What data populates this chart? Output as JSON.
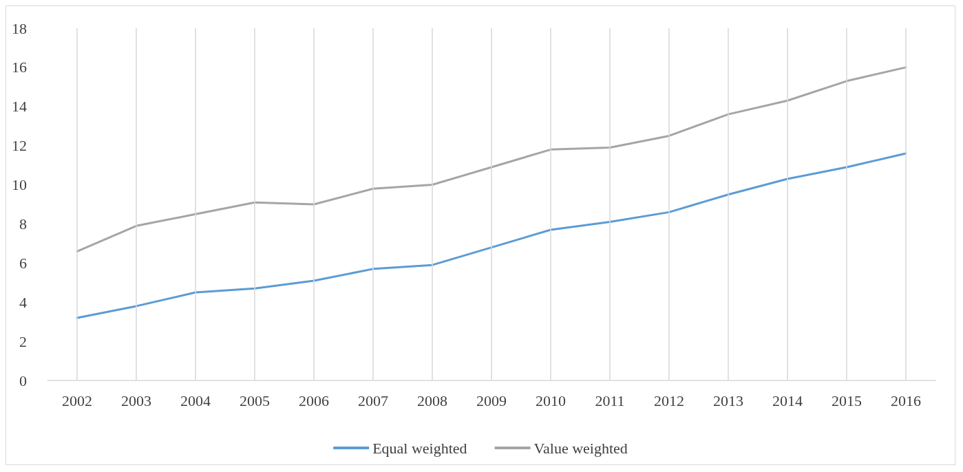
{
  "chart_data": {
    "type": "line",
    "categories": [
      "2002",
      "2003",
      "2004",
      "2005",
      "2006",
      "2007",
      "2008",
      "2009",
      "2010",
      "2011",
      "2012",
      "2013",
      "2014",
      "2015",
      "2016"
    ],
    "series": [
      {
        "name": "Equal weighted",
        "color": "#5b9bd5",
        "values": [
          3.2,
          3.8,
          4.5,
          4.7,
          5.1,
          5.7,
          5.9,
          6.8,
          7.7,
          8.1,
          8.6,
          9.5,
          10.3,
          10.9,
          11.6
        ]
      },
      {
        "name": "Value weighted",
        "color": "#a5a5a5",
        "values": [
          6.6,
          7.9,
          8.5,
          9.1,
          9.0,
          9.8,
          10.0,
          10.9,
          11.8,
          11.9,
          12.5,
          13.6,
          14.3,
          15.3,
          16.0
        ]
      }
    ],
    "ylim": [
      0,
      18
    ],
    "yticks": [
      0,
      2,
      4,
      6,
      8,
      10,
      12,
      14,
      16,
      18
    ],
    "grid": "x",
    "legend": "bottom",
    "marker": "none",
    "line_style": "solid"
  }
}
